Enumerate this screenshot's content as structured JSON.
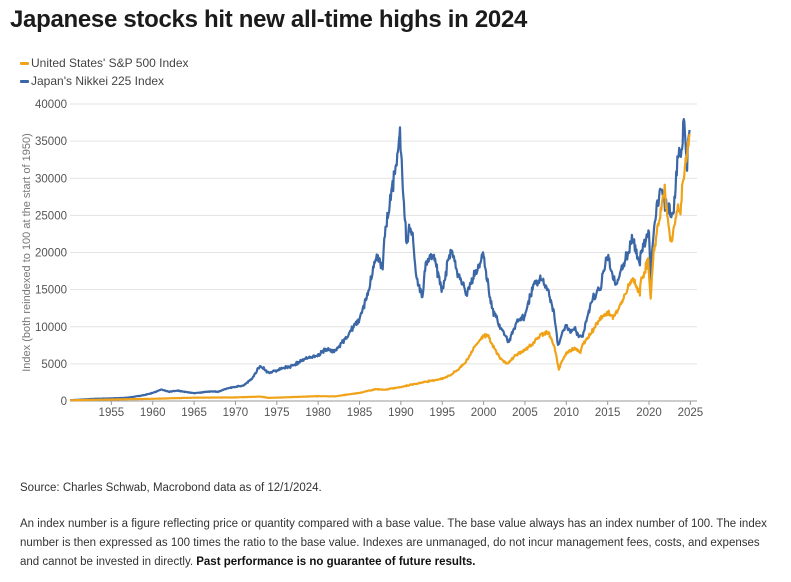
{
  "title": "Japanese stocks hit new all-time highs in 2024",
  "source": "Source: Charles Schwab, Macrobond data as of 12/1/2024.",
  "footnote": {
    "text": "An index number is a figure reflecting price or quantity compared with a base value. The base value always has an index number of 100. The index number is then expressed as 100 times the ratio to the base value.  Indexes are unmanaged, do not incur management fees, costs, and expenses and cannot be invested in directly. ",
    "bold": "Past performance is no guarantee of future results."
  },
  "colors": {
    "sp500": "#f0a318",
    "nikkei": "#3b67a6",
    "grid": "#e3e3e3",
    "axis": "#999999"
  },
  "chart_data": {
    "type": "line",
    "ylabel": "Index (both reindexed to 100 at the start of 1950)",
    "xlim": [
      1950,
      2025.8
    ],
    "ylim": [
      0,
      40000
    ],
    "yticks": [
      0,
      5000,
      10000,
      15000,
      20000,
      25000,
      30000,
      35000,
      40000
    ],
    "xticks": [
      1955,
      1960,
      1965,
      1970,
      1975,
      1980,
      1985,
      1990,
      1995,
      2000,
      2005,
      2010,
      2015,
      2020,
      2025
    ],
    "grid": "horizontal",
    "legend_position": "top-left",
    "series": [
      {
        "name": "United States' S&P 500 Index",
        "color": "#f0a318",
        "points": [
          [
            1950,
            100
          ],
          [
            1955,
            200
          ],
          [
            1960,
            300
          ],
          [
            1965,
            450
          ],
          [
            1970,
            480
          ],
          [
            1973,
            600
          ],
          [
            1974,
            420
          ],
          [
            1980,
            650
          ],
          [
            1982,
            620
          ],
          [
            1985,
            1100
          ],
          [
            1987,
            1600
          ],
          [
            1988,
            1500
          ],
          [
            1990,
            1900
          ],
          [
            1993,
            2600
          ],
          [
            1995,
            3000
          ],
          [
            1996,
            3500
          ],
          [
            1997,
            4300
          ],
          [
            1998,
            5500
          ],
          [
            1999,
            7500
          ],
          [
            2000,
            8900
          ],
          [
            2000.6,
            8700
          ],
          [
            2001,
            7600
          ],
          [
            2002,
            5800
          ],
          [
            2002.8,
            5000
          ],
          [
            2003,
            5200
          ],
          [
            2004,
            6300
          ],
          [
            2005,
            6800
          ],
          [
            2006,
            7800
          ],
          [
            2007,
            9000
          ],
          [
            2007.8,
            9300
          ],
          [
            2008.5,
            7500
          ],
          [
            2009.1,
            4300
          ],
          [
            2009.5,
            5500
          ],
          [
            2010,
            6400
          ],
          [
            2011,
            7200
          ],
          [
            2011.7,
            6500
          ],
          [
            2012,
            7600
          ],
          [
            2013,
            9200
          ],
          [
            2014,
            11000
          ],
          [
            2015,
            12000
          ],
          [
            2015.7,
            11300
          ],
          [
            2016,
            11800
          ],
          [
            2017,
            14000
          ],
          [
            2018,
            16500
          ],
          [
            2018.9,
            14500
          ],
          [
            2019,
            16000
          ],
          [
            2019.9,
            19000
          ],
          [
            2020.2,
            13500
          ],
          [
            2020.5,
            19500
          ],
          [
            2021,
            23000
          ],
          [
            2021.9,
            28500
          ],
          [
            2022.5,
            22000
          ],
          [
            2022.8,
            21800
          ],
          [
            2023,
            23000
          ],
          [
            2023.5,
            26500
          ],
          [
            2023.8,
            24800
          ],
          [
            2024,
            28500
          ],
          [
            2024.5,
            32500
          ],
          [
            2024.9,
            36000
          ]
        ]
      },
      {
        "name": "Japan's Nikkei 225 Index",
        "color": "#3b67a6",
        "points": [
          [
            1950,
            100
          ],
          [
            1953,
            300
          ],
          [
            1955,
            350
          ],
          [
            1957,
            450
          ],
          [
            1959,
            800
          ],
          [
            1960,
            1100
          ],
          [
            1961,
            1550
          ],
          [
            1962,
            1250
          ],
          [
            1963,
            1400
          ],
          [
            1964,
            1200
          ],
          [
            1965,
            1050
          ],
          [
            1967,
            1300
          ],
          [
            1968,
            1250
          ],
          [
            1969,
            1700
          ],
          [
            1970,
            1900
          ],
          [
            1971,
            2100
          ],
          [
            1972,
            3000
          ],
          [
            1973,
            4800
          ],
          [
            1974,
            3800
          ],
          [
            1975,
            4100
          ],
          [
            1976,
            4500
          ],
          [
            1977,
            4800
          ],
          [
            1978,
            5400
          ],
          [
            1979,
            5900
          ],
          [
            1980,
            6200
          ],
          [
            1981,
            7000
          ],
          [
            1982,
            6700
          ],
          [
            1983,
            8000
          ],
          [
            1984,
            9500
          ],
          [
            1985,
            11000
          ],
          [
            1986,
            14500
          ],
          [
            1987,
            19500
          ],
          [
            1987.8,
            18000
          ],
          [
            1988,
            22000
          ],
          [
            1989,
            29000
          ],
          [
            1989.5,
            32000
          ],
          [
            1989.9,
            35800
          ],
          [
            1990.3,
            28000
          ],
          [
            1990.7,
            21000
          ],
          [
            1991,
            23500
          ],
          [
            1991.5,
            21500
          ],
          [
            1992,
            16000
          ],
          [
            1992.6,
            14000
          ],
          [
            1993,
            18500
          ],
          [
            1994,
            19500
          ],
          [
            1995,
            14800
          ],
          [
            1996,
            20500
          ],
          [
            1997,
            17000
          ],
          [
            1998,
            14300
          ],
          [
            1999,
            17500
          ],
          [
            2000,
            19500
          ],
          [
            2001,
            12500
          ],
          [
            2002,
            10000
          ],
          [
            2003,
            7900
          ],
          [
            2004,
            10500
          ],
          [
            2005,
            11500
          ],
          [
            2006,
            15500
          ],
          [
            2007,
            16500
          ],
          [
            2007.8,
            15000
          ],
          [
            2008.5,
            12000
          ],
          [
            2009,
            7400
          ],
          [
            2009.5,
            9000
          ],
          [
            2010,
            10200
          ],
          [
            2010.5,
            9200
          ],
          [
            2011,
            9800
          ],
          [
            2011.5,
            8600
          ],
          [
            2012,
            8700
          ],
          [
            2013,
            13500
          ],
          [
            2014,
            15000
          ],
          [
            2015,
            19500
          ],
          [
            2016,
            15500
          ],
          [
            2017,
            18500
          ],
          [
            2018,
            22000
          ],
          [
            2018.9,
            18500
          ],
          [
            2019,
            20000
          ],
          [
            2020,
            23000
          ],
          [
            2020.2,
            16500
          ],
          [
            2020.5,
            22000
          ],
          [
            2021,
            27000
          ],
          [
            2021.5,
            28500
          ],
          [
            2022,
            26000
          ],
          [
            2022.7,
            25500
          ],
          [
            2023,
            26000
          ],
          [
            2023.5,
            32500
          ],
          [
            2024,
            33500
          ],
          [
            2024.2,
            39000
          ],
          [
            2024.6,
            30500
          ],
          [
            2024.7,
            35000
          ],
          [
            2024.9,
            36500
          ]
        ]
      }
    ]
  }
}
